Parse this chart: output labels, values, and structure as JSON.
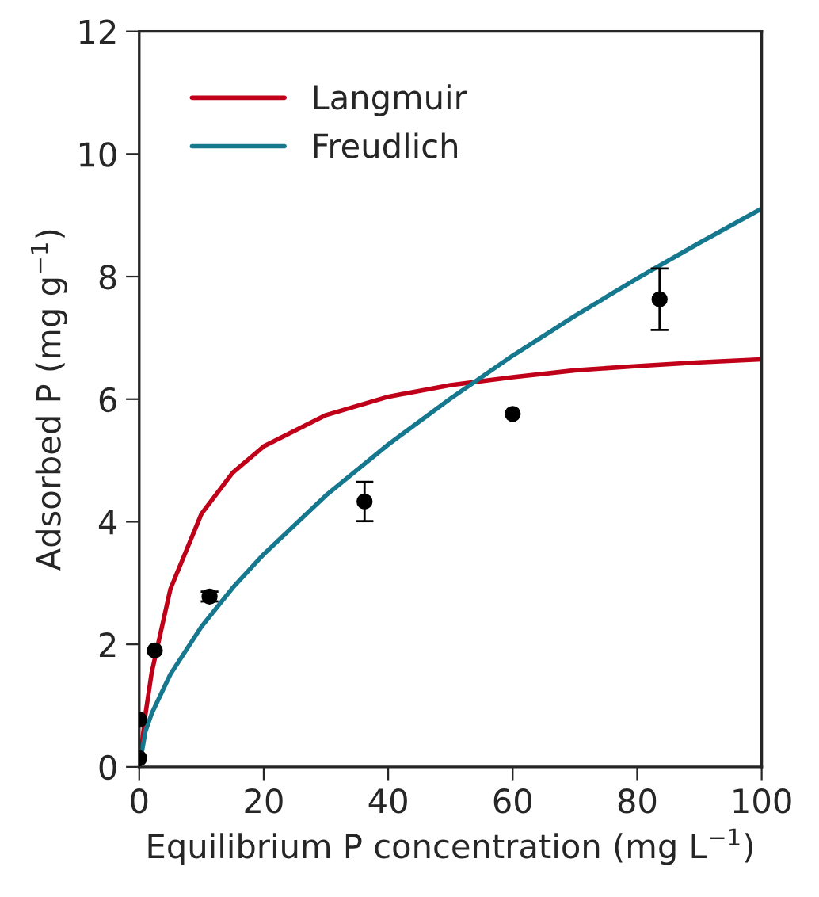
{
  "chart_data": {
    "type": "scatter",
    "xlabel": "Equilibrium P concentration (mg L$^{−1}$)",
    "ylabel": "Adsorbed P (mg g$^{−1}$)",
    "xlim": [
      0,
      100
    ],
    "ylim": [
      0,
      12
    ],
    "xticks": [
      0,
      20,
      40,
      60,
      80,
      100
    ],
    "yticks": [
      0,
      2,
      4,
      6,
      8,
      10,
      12
    ],
    "grid": false,
    "legend": "top left",
    "series": [
      {
        "color": "#000000",
        "marker": "circle",
        "x": [
          0,
          0,
          2.5,
          11.3,
          36.2,
          60,
          83.6
        ],
        "values": [
          0.14,
          0.77,
          1.9,
          2.78,
          4.33,
          5.76,
          7.63
        ],
        "errors": [
          null,
          null,
          null,
          0.08,
          0.32,
          null,
          0.5
        ]
      },
      {
        "type": "line",
        "name": "Langmuir",
        "color": "#c00018",
        "marker": "none",
        "x": [
          0,
          1,
          2,
          5,
          10,
          15,
          20,
          30,
          40,
          50,
          60,
          70,
          80,
          90,
          100
        ],
        "values": [
          0,
          0.86,
          1.54,
          2.9,
          4.13,
          4.8,
          5.23,
          5.74,
          6.04,
          6.23,
          6.36,
          6.47,
          6.54,
          6.6,
          6.65
        ]
      },
      {
        "type": "line",
        "name": "Freudlich",
        "color": "#15788f",
        "marker": "none",
        "x": [
          0,
          1,
          2,
          5,
          10,
          15,
          20,
          30,
          40,
          50,
          60,
          70,
          80,
          90,
          100
        ],
        "values": [
          0,
          0.58,
          0.87,
          1.51,
          2.29,
          2.92,
          3.47,
          4.43,
          5.26,
          6.01,
          6.71,
          7.36,
          7.97,
          8.55,
          9.11
        ]
      }
    ]
  }
}
